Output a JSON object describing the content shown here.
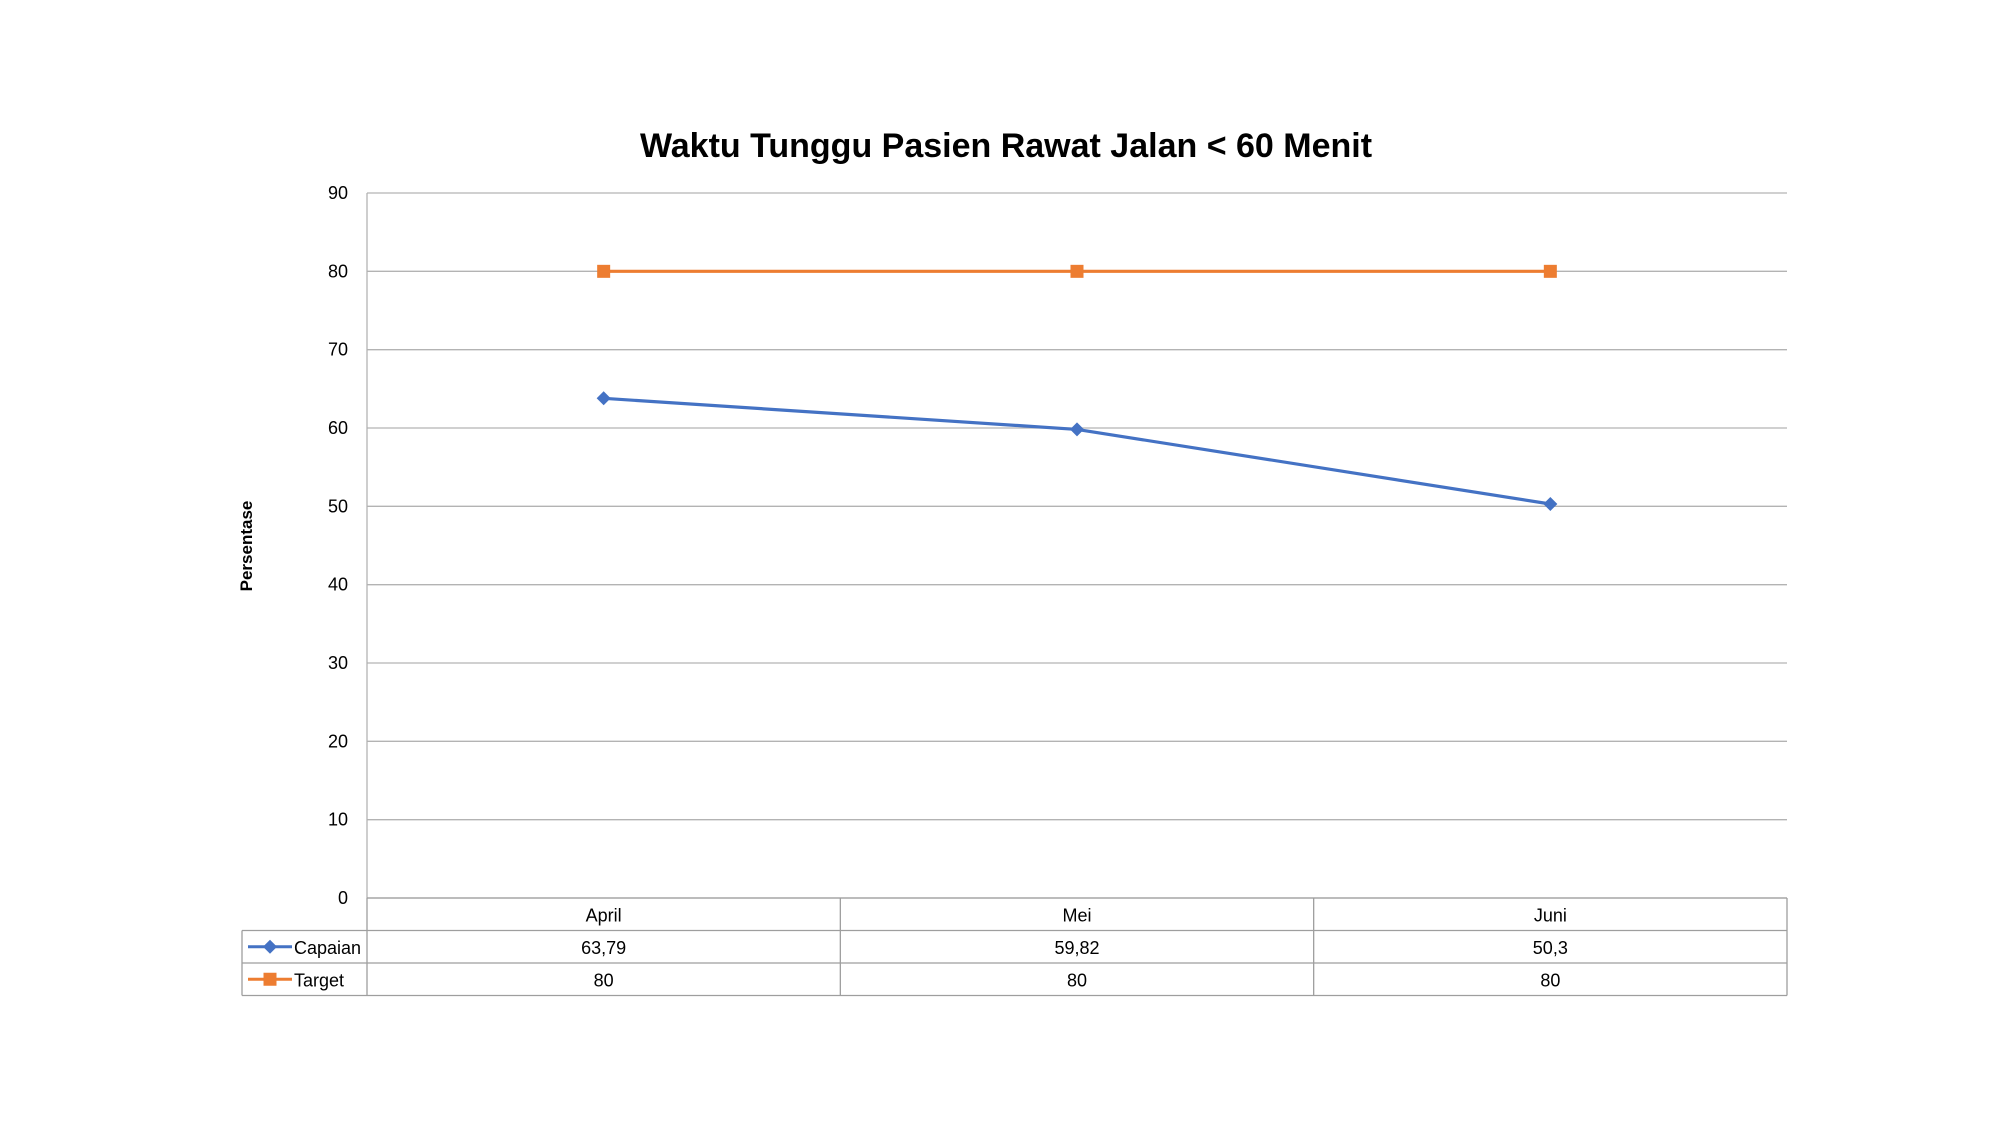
{
  "chart_data": {
    "type": "line",
    "title": "Waktu Tunggu Pasien Rawat Jalan < 60 Menit",
    "xlabel": "",
    "ylabel": "Persentase",
    "categories": [
      "April",
      "Mei",
      "Juni"
    ],
    "ylim": [
      0,
      90
    ],
    "yticks": [
      0,
      10,
      20,
      30,
      40,
      50,
      60,
      70,
      80,
      90
    ],
    "grid": true,
    "legend": "data-table-below",
    "series": [
      {
        "name": "Capaian",
        "values": [
          63.79,
          59.82,
          50.3
        ],
        "value_labels": [
          "63,79",
          "59,82",
          "50,3"
        ],
        "color": "#4472C4",
        "marker": "diamond"
      },
      {
        "name": "Target",
        "values": [
          80,
          80,
          80
        ],
        "value_labels": [
          "80",
          "80",
          "80"
        ],
        "color": "#ED7D31",
        "marker": "square"
      }
    ]
  }
}
